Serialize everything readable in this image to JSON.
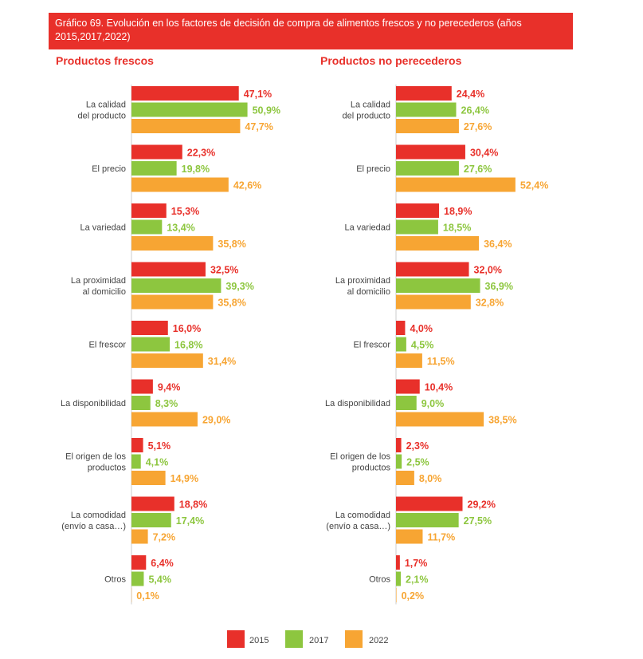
{
  "title": "Gráfico 69. Evolución en los factores de decisión de compra de alimentos frescos y no perecederos (años 2015,2017,2022)",
  "colors": {
    "2015": "#e8302a",
    "2017": "#8dc63f",
    "2022": "#f7a533",
    "label": "#444444"
  },
  "chart_data": [
    {
      "type": "bar",
      "orientation": "horizontal",
      "title": "Productos frescos",
      "categories": [
        [
          "La calidad",
          "del producto"
        ],
        [
          "El precio"
        ],
        [
          "La variedad"
        ],
        [
          "La proximidad",
          "al domicilio"
        ],
        [
          "El frescor"
        ],
        [
          "La disponibilidad"
        ],
        [
          "El origen de los",
          "productos"
        ],
        [
          "La comodidad",
          "(envío a casa…)"
        ],
        [
          "Otros"
        ]
      ],
      "series": [
        {
          "name": "2015",
          "values": [
            47.1,
            22.3,
            15.3,
            32.5,
            16.0,
            9.4,
            5.1,
            18.8,
            6.4
          ],
          "labels": [
            "47,1%",
            "22,3%",
            "15,3%",
            "32,5%",
            "16,0%",
            "9,4%",
            "5,1%",
            "18,8%",
            "6,4%"
          ]
        },
        {
          "name": "2017",
          "values": [
            50.9,
            19.8,
            13.4,
            39.3,
            16.8,
            8.3,
            4.1,
            17.4,
            5.4
          ],
          "labels": [
            "50,9%",
            "19,8%",
            "13,4%",
            "39,3%",
            "16,8%",
            "8,3%",
            "4,1%",
            "17,4%",
            "5,4%"
          ]
        },
        {
          "name": "2022",
          "values": [
            47.7,
            42.6,
            35.8,
            35.8,
            31.4,
            29.0,
            14.9,
            7.2,
            0.1
          ],
          "labels": [
            "47,7%",
            "42,6%",
            "35,8%",
            "35,8%",
            "31,4%",
            "29,0%",
            "14,9%",
            "7,2%",
            "0,1%"
          ]
        }
      ],
      "legend_position": "bottom",
      "grid": false
    },
    {
      "type": "bar",
      "orientation": "horizontal",
      "title": "Productos no perecederos",
      "categories": [
        [
          "La calidad",
          "del producto"
        ],
        [
          "El precio"
        ],
        [
          "La variedad"
        ],
        [
          "La proximidad",
          "al domicilio"
        ],
        [
          "El frescor"
        ],
        [
          "La disponibilidad"
        ],
        [
          "El origen de los",
          "productos"
        ],
        [
          "La comodidad",
          "(envío a casa…)"
        ],
        [
          "Otros"
        ]
      ],
      "series": [
        {
          "name": "2015",
          "values": [
            24.4,
            30.4,
            18.9,
            32.0,
            4.0,
            10.4,
            2.3,
            29.2,
            1.7
          ],
          "labels": [
            "24,4%",
            "30,4%",
            "18,9%",
            "32,0%",
            "4,0%",
            "10,4%",
            "2,3%",
            "29,2%",
            "1,7%"
          ]
        },
        {
          "name": "2017",
          "values": [
            26.4,
            27.6,
            18.5,
            36.9,
            4.5,
            9.0,
            2.5,
            27.5,
            2.1
          ],
          "labels": [
            "26,4%",
            "27,6%",
            "18,5%",
            "36,9%",
            "4,5%",
            "9,0%",
            "2,5%",
            "27,5%",
            "2,1%"
          ]
        },
        {
          "name": "2022",
          "values": [
            27.6,
            52.4,
            36.4,
            32.8,
            11.5,
            38.5,
            8.0,
            11.7,
            0.2
          ],
          "labels": [
            "27,6%",
            "52,4%",
            "36,4%",
            "32,8%",
            "11,5%",
            "38,5%",
            "8,0%",
            "11,7%",
            "0,2%"
          ]
        }
      ],
      "legend_position": "bottom",
      "grid": false
    }
  ],
  "legend": [
    {
      "label": "2015",
      "color": "#e8302a"
    },
    {
      "label": "2017",
      "color": "#8dc63f"
    },
    {
      "label": "2022",
      "color": "#f7a533"
    }
  ]
}
